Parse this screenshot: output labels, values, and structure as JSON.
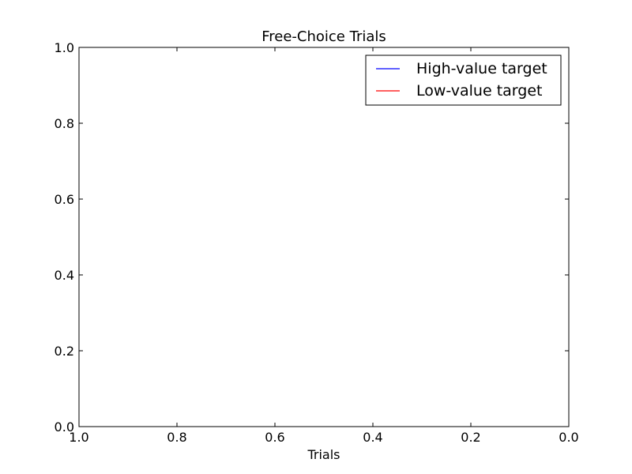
{
  "chart_data": {
    "type": "line",
    "title": "Free-Choice Trials",
    "xlabel": "Trials",
    "ylabel": "",
    "xlim": [
      1.0,
      0.0
    ],
    "ylim": [
      0.0,
      1.0
    ],
    "x_ticks": [
      "1.0",
      "0.8",
      "0.6",
      "0.4",
      "0.2",
      "0.0"
    ],
    "y_ticks": [
      "0.0",
      "0.2",
      "0.4",
      "0.6",
      "0.8",
      "1.0"
    ],
    "grid": false,
    "legend_position": "top-right",
    "series": [
      {
        "name": "High-value target",
        "color": "#0000ff",
        "x": [],
        "y": []
      },
      {
        "name": "Low-value target",
        "color": "#ff0000",
        "x": [],
        "y": []
      }
    ]
  }
}
